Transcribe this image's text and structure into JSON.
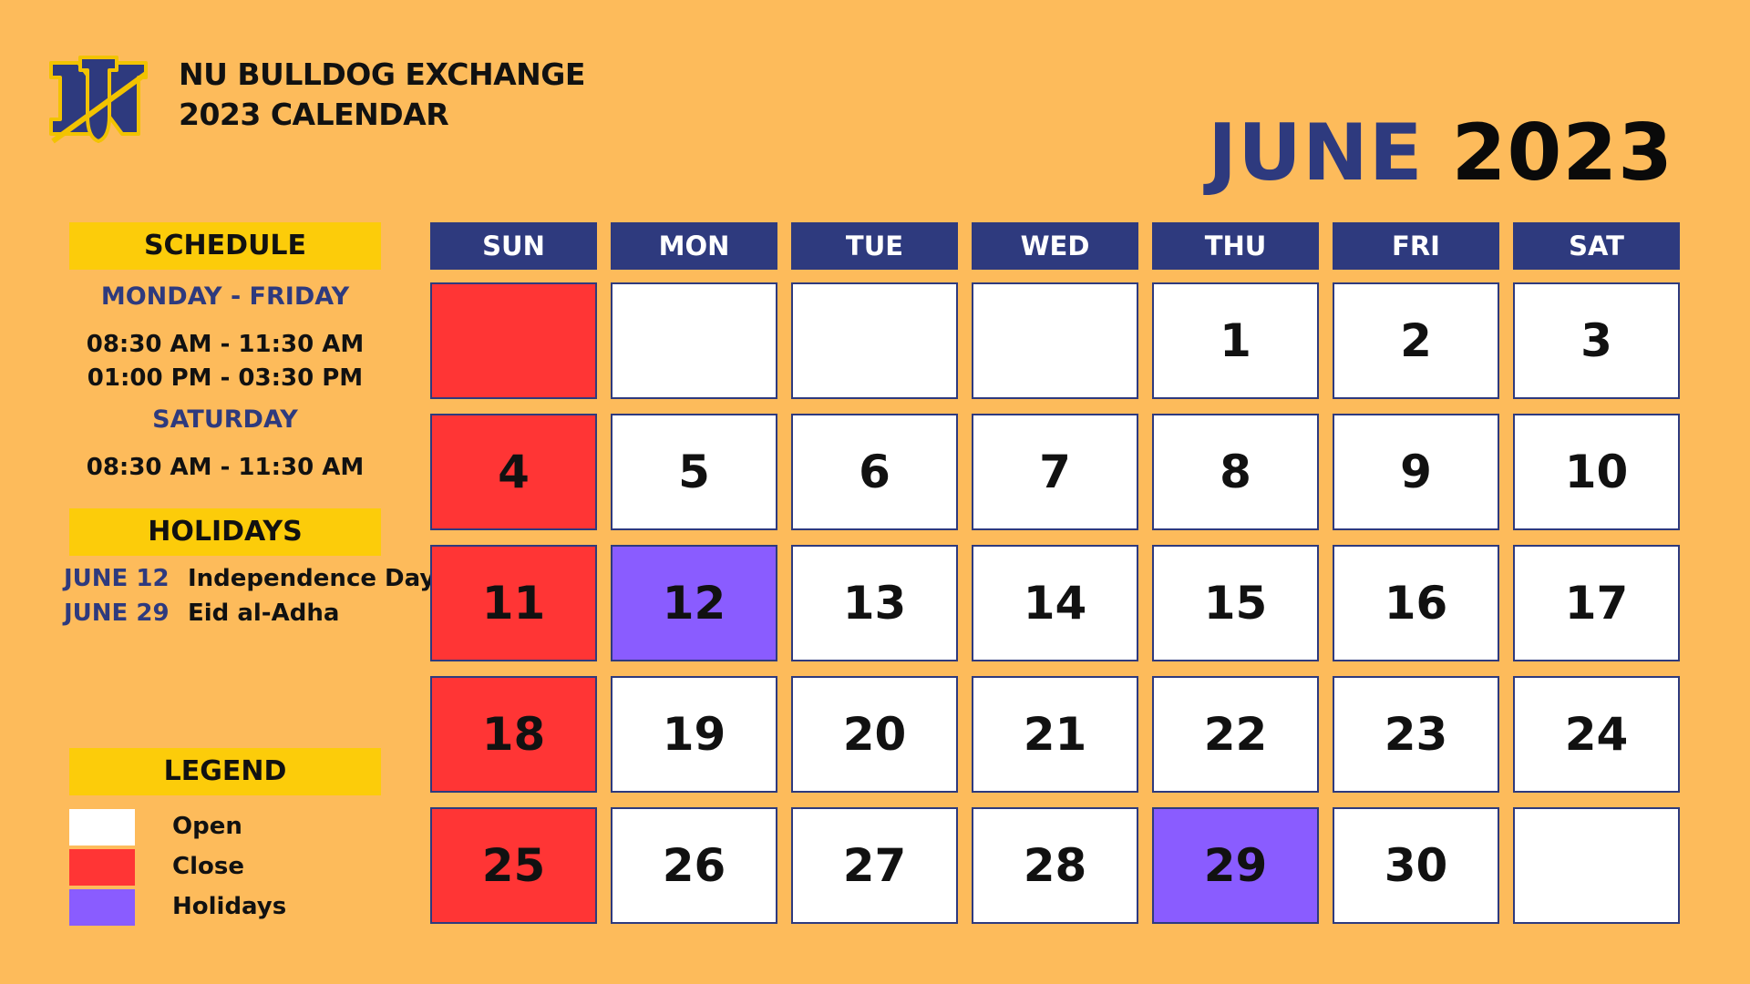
{
  "header": {
    "org_line1": "NU BULLDOG EXCHANGE",
    "org_line2": "2023 CALENDAR",
    "month": "JUNE",
    "year": "2023"
  },
  "schedule": {
    "title": "SCHEDULE",
    "weekday_label": "MONDAY - FRIDAY",
    "weekday_times": [
      "08:30 AM - 11:30 AM",
      "01:00 PM - 03:30 PM"
    ],
    "saturday_label": "SATURDAY",
    "saturday_times": [
      "08:30 AM - 11:30 AM"
    ]
  },
  "holidays": {
    "title": "HOLIDAYS",
    "items": [
      {
        "date": "JUNE 12",
        "name": "Independence Day"
      },
      {
        "date": "JUNE 29",
        "name": "Eid al-Adha"
      }
    ]
  },
  "legend": {
    "title": "LEGEND",
    "items": [
      {
        "label": "Open",
        "color": "#FFFFFF"
      },
      {
        "label": "Close",
        "color": "#FF3535"
      },
      {
        "label": "Holidays",
        "color": "#8A5CFF"
      }
    ]
  },
  "calendar": {
    "days": [
      "SUN",
      "MON",
      "TUE",
      "WED",
      "THU",
      "FRI",
      "SAT"
    ],
    "weeks": [
      [
        {
          "day": "",
          "status": "close"
        },
        {
          "day": "",
          "status": "open"
        },
        {
          "day": "",
          "status": "open"
        },
        {
          "day": "",
          "status": "open"
        },
        {
          "day": "1",
          "status": "open"
        },
        {
          "day": "2",
          "status": "open"
        },
        {
          "day": "3",
          "status": "open"
        }
      ],
      [
        {
          "day": "4",
          "status": "close"
        },
        {
          "day": "5",
          "status": "open"
        },
        {
          "day": "6",
          "status": "open"
        },
        {
          "day": "7",
          "status": "open"
        },
        {
          "day": "8",
          "status": "open"
        },
        {
          "day": "9",
          "status": "open"
        },
        {
          "day": "10",
          "status": "open"
        }
      ],
      [
        {
          "day": "11",
          "status": "close"
        },
        {
          "day": "12",
          "status": "holiday"
        },
        {
          "day": "13",
          "status": "open"
        },
        {
          "day": "14",
          "status": "open"
        },
        {
          "day": "15",
          "status": "open"
        },
        {
          "day": "16",
          "status": "open"
        },
        {
          "day": "17",
          "status": "open"
        }
      ],
      [
        {
          "day": "18",
          "status": "close"
        },
        {
          "day": "19",
          "status": "open"
        },
        {
          "day": "20",
          "status": "open"
        },
        {
          "day": "21",
          "status": "open"
        },
        {
          "day": "22",
          "status": "open"
        },
        {
          "day": "23",
          "status": "open"
        },
        {
          "day": "24",
          "status": "open"
        }
      ],
      [
        {
          "day": "25",
          "status": "close"
        },
        {
          "day": "26",
          "status": "open"
        },
        {
          "day": "27",
          "status": "open"
        },
        {
          "day": "28",
          "status": "open"
        },
        {
          "day": "29",
          "status": "holiday"
        },
        {
          "day": "30",
          "status": "open"
        },
        {
          "day": "",
          "status": "open"
        }
      ]
    ]
  },
  "colors": {
    "background": "#FDBB5B",
    "navy": "#2E3A7E",
    "yellow": "#FCCC0A",
    "close": "#FF3535",
    "holiday": "#8A5CFF",
    "open": "#FFFFFF"
  },
  "logo": {
    "icon": "nu-bulldog-logo",
    "text": "NU"
  }
}
